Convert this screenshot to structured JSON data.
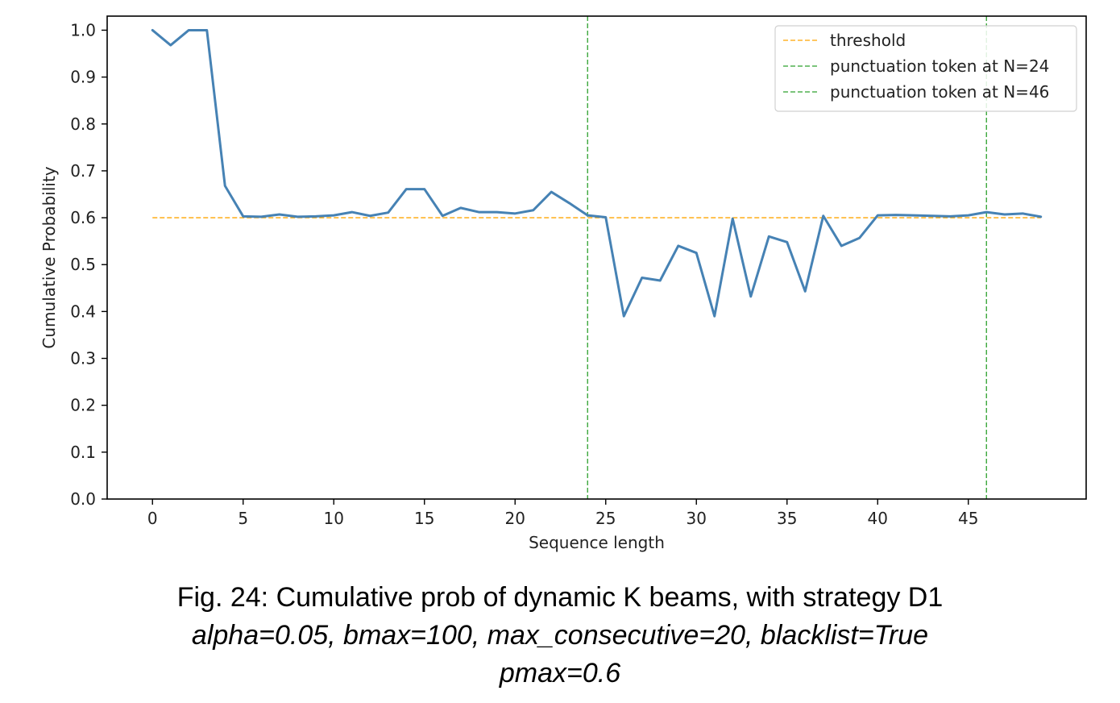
{
  "chart_data": {
    "type": "line",
    "xlabel": "Sequence length",
    "ylabel": "Cumulative Probability",
    "xlim": [
      -2.5,
      51.5
    ],
    "ylim": [
      0.0,
      1.03
    ],
    "xticks": [
      0,
      5,
      10,
      15,
      20,
      25,
      30,
      35,
      40,
      45
    ],
    "yticks": [
      0.0,
      0.1,
      0.2,
      0.3,
      0.4,
      0.5,
      0.6,
      0.7,
      0.8,
      0.9,
      1.0
    ],
    "grid": false,
    "legend_position": "top-right",
    "series": [
      {
        "name": "",
        "color": "#4682b4",
        "x": [
          0,
          1,
          2,
          3,
          4,
          5,
          6,
          7,
          8,
          9,
          10,
          11,
          12,
          13,
          14,
          15,
          16,
          17,
          18,
          19,
          20,
          21,
          22,
          23,
          24,
          25,
          26,
          27,
          28,
          29,
          30,
          31,
          32,
          33,
          34,
          35,
          36,
          37,
          38,
          39,
          40,
          41,
          42,
          43,
          44,
          45,
          46,
          47,
          48,
          49
        ],
        "y": [
          1.0,
          0.968,
          1.0,
          1.0,
          0.668,
          0.603,
          0.602,
          0.607,
          0.602,
          0.603,
          0.605,
          0.612,
          0.604,
          0.611,
          0.661,
          0.661,
          0.604,
          0.621,
          0.612,
          0.612,
          0.609,
          0.616,
          0.655,
          0.631,
          0.605,
          0.601,
          0.39,
          0.472,
          0.466,
          0.54,
          0.525,
          0.39,
          0.598,
          0.432,
          0.56,
          0.548,
          0.443,
          0.604,
          0.54,
          0.557,
          0.605,
          0.606,
          0.605,
          0.604,
          0.603,
          0.605,
          0.612,
          0.607,
          0.609,
          0.602
        ]
      }
    ],
    "reference_lines": [
      {
        "orientation": "horizontal",
        "value": 0.6,
        "from": 0,
        "to": 49,
        "color": "#ffa500",
        "label": "threshold"
      },
      {
        "orientation": "vertical",
        "value": 24,
        "color": "#2ca02c",
        "label": "punctuation token at N=24"
      },
      {
        "orientation": "vertical",
        "value": 46,
        "color": "#2ca02c",
        "label": "punctuation token at N=46"
      }
    ]
  },
  "caption": {
    "line1": "Fig. 24: Cumulative prob of dynamic K beams, with strategy D1",
    "line2": "alpha=0.05, bmax=100, max_consecutive=20, blacklist=True",
    "line3": "pmax=0.6"
  }
}
